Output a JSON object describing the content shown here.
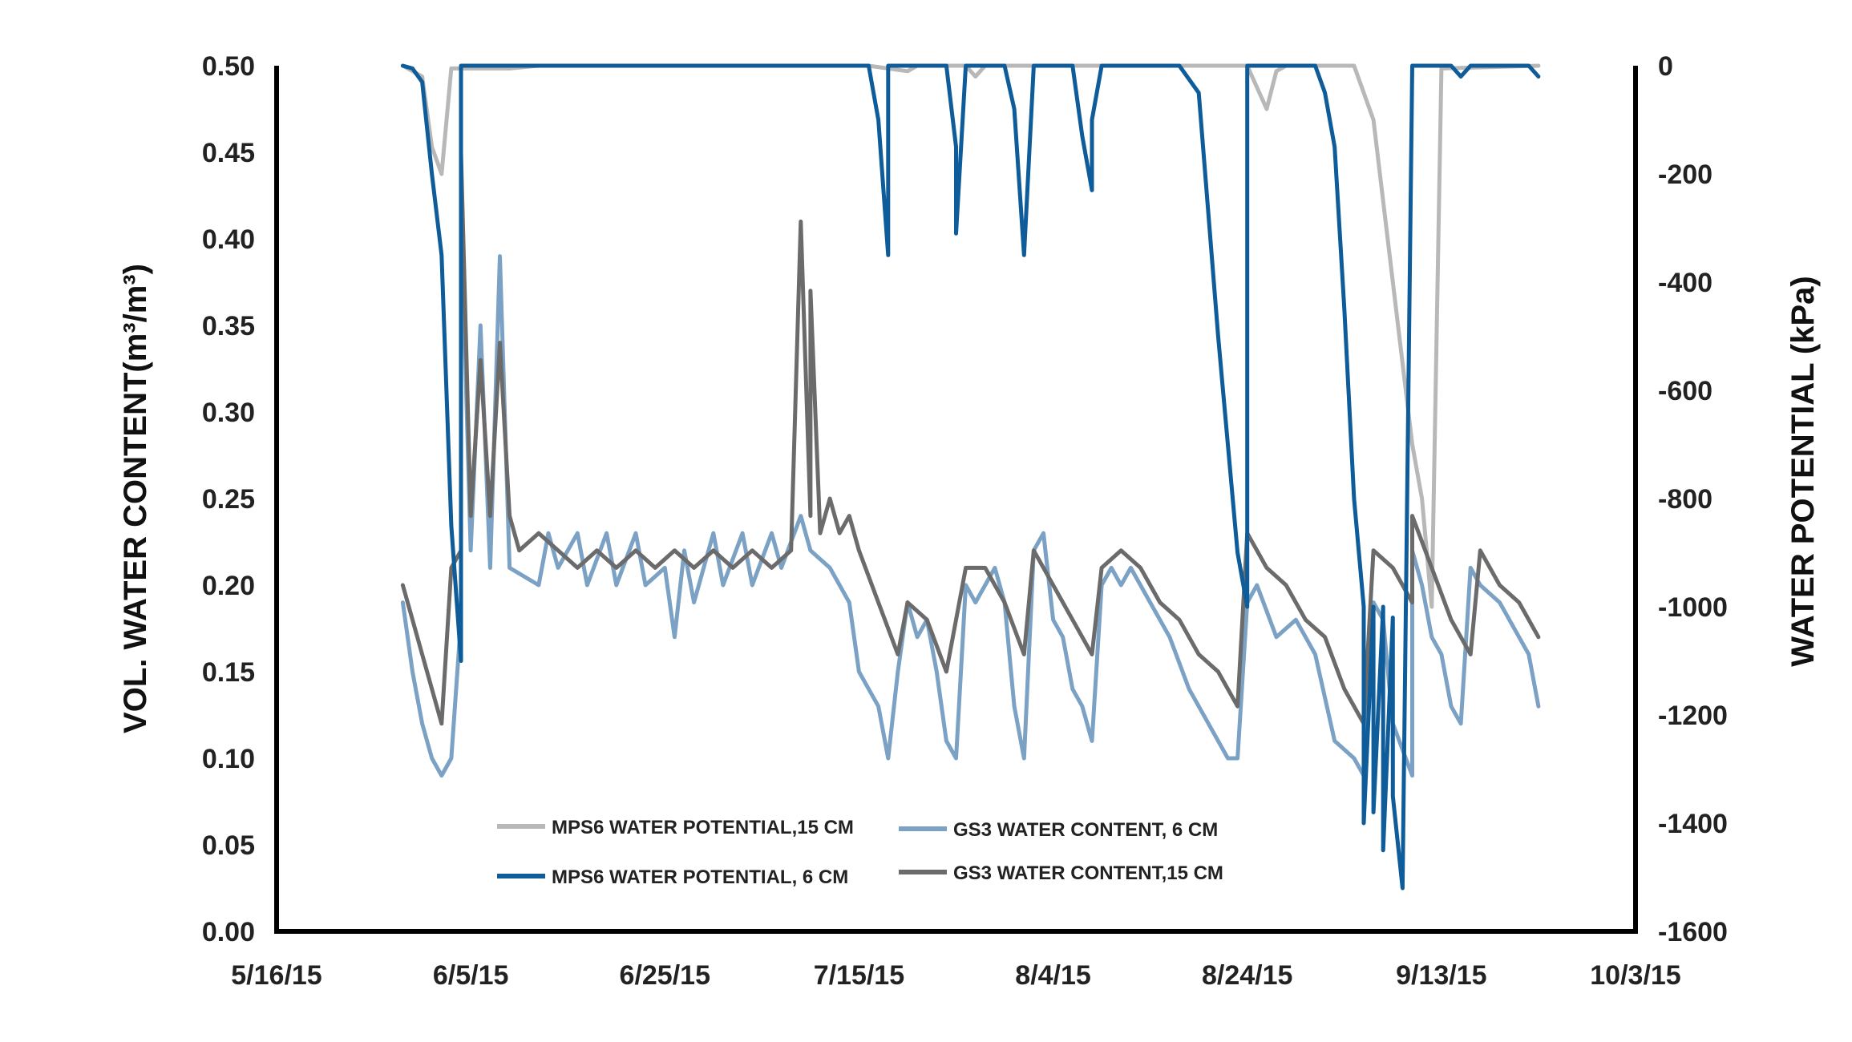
{
  "chart_data": {
    "type": "line",
    "ylabel_left": "VOL. WATER CONTENT(m³/m³)",
    "ylabel_right": "WATER POTENTIAL (kPa)",
    "xlim": [
      "2015-05-16",
      "2015-10-03"
    ],
    "ylim_left": [
      0,
      0.5
    ],
    "ylim_right": [
      -1600,
      0
    ],
    "x_ticks": [
      "5/16/15",
      "6/5/15",
      "6/25/15",
      "7/15/15",
      "8/4/15",
      "8/24/15",
      "9/13/15",
      "10/3/15"
    ],
    "y_ticks_left": [
      "0.00",
      "0.05",
      "0.10",
      "0.15",
      "0.20",
      "0.25",
      "0.30",
      "0.35",
      "0.40",
      "0.45",
      "0.50"
    ],
    "y_ticks_right": [
      "0",
      "-200",
      "-400",
      "-600",
      "-800",
      "-1000",
      "-1200",
      "-1400",
      "-1600"
    ],
    "grid": false,
    "legend_position": "bottom-left",
    "series": [
      {
        "name": "MPS6 WATER POTENTIAL,15 CM",
        "axis": "right",
        "color": "#b8b8b8",
        "points": [
          [
            "2015-05-29",
            0
          ],
          [
            "2015-05-31",
            -20
          ],
          [
            "2015-06-01",
            -150
          ],
          [
            "2015-06-02",
            -200
          ],
          [
            "2015-06-03",
            -5
          ],
          [
            "2015-06-09",
            -5
          ],
          [
            "2015-06-12",
            0
          ],
          [
            "2015-07-16",
            0
          ],
          [
            "2015-07-20",
            -10
          ],
          [
            "2015-07-21",
            0
          ],
          [
            "2015-07-26",
            0
          ],
          [
            "2015-07-27",
            -20
          ],
          [
            "2015-07-28",
            0
          ],
          [
            "2015-08-24",
            0
          ],
          [
            "2015-08-26",
            -80
          ],
          [
            "2015-08-27",
            -10
          ],
          [
            "2015-08-28",
            0
          ],
          [
            "2015-09-04",
            0
          ],
          [
            "2015-09-06",
            -100
          ],
          [
            "2015-09-08",
            -400
          ],
          [
            "2015-09-10",
            -700
          ],
          [
            "2015-09-11",
            -800
          ],
          [
            "2015-09-12",
            -1000
          ],
          [
            "2015-09-13",
            -5
          ],
          [
            "2015-09-23",
            0
          ]
        ]
      },
      {
        "name": "MPS6 WATER POTENTIAL, 6 CM",
        "axis": "right",
        "color": "#0e5c99",
        "points": [
          [
            "2015-05-29",
            0
          ],
          [
            "2015-05-30",
            -5
          ],
          [
            "2015-05-31",
            -30
          ],
          [
            "2015-06-01",
            -200
          ],
          [
            "2015-06-02",
            -350
          ],
          [
            "2015-06-03",
            -850
          ],
          [
            "2015-06-04",
            -1100
          ],
          [
            "2015-06-04",
            0
          ],
          [
            "2015-07-16",
            0
          ],
          [
            "2015-07-17",
            -100
          ],
          [
            "2015-07-18",
            -350
          ],
          [
            "2015-07-18",
            0
          ],
          [
            "2015-07-24",
            0
          ],
          [
            "2015-07-25",
            -150
          ],
          [
            "2015-07-25",
            -310
          ],
          [
            "2015-07-26",
            0
          ],
          [
            "2015-07-30",
            0
          ],
          [
            "2015-07-31",
            -80
          ],
          [
            "2015-08-01",
            -350
          ],
          [
            "2015-08-02",
            0
          ],
          [
            "2015-08-06",
            0
          ],
          [
            "2015-08-07",
            -130
          ],
          [
            "2015-08-08",
            -230
          ],
          [
            "2015-08-08",
            -100
          ],
          [
            "2015-08-09",
            0
          ],
          [
            "2015-08-17",
            0
          ],
          [
            "2015-08-19",
            -50
          ],
          [
            "2015-08-21",
            -500
          ],
          [
            "2015-08-22",
            -700
          ],
          [
            "2015-08-23",
            -900
          ],
          [
            "2015-08-24",
            -1000
          ],
          [
            "2015-08-24",
            0
          ],
          [
            "2015-08-31",
            0
          ],
          [
            "2015-09-01",
            -50
          ],
          [
            "2015-09-02",
            -150
          ],
          [
            "2015-09-03",
            -450
          ],
          [
            "2015-09-04",
            -800
          ],
          [
            "2015-09-05",
            -1000
          ],
          [
            "2015-09-05",
            -1400
          ],
          [
            "2015-09-06",
            -1000
          ],
          [
            "2015-09-06",
            -1380
          ],
          [
            "2015-09-07",
            -1000
          ],
          [
            "2015-09-07",
            -1450
          ],
          [
            "2015-09-08",
            -1020
          ],
          [
            "2015-09-08",
            -1350
          ],
          [
            "2015-09-09",
            -1520
          ],
          [
            "2015-09-10",
            0
          ],
          [
            "2015-09-14",
            0
          ],
          [
            "2015-09-15",
            -20
          ],
          [
            "2015-09-16",
            0
          ],
          [
            "2015-09-22",
            0
          ],
          [
            "2015-09-23",
            -20
          ]
        ]
      },
      {
        "name": "GS3 WATER CONTENT, 6 CM",
        "axis": "left",
        "color": "#7ba1c4",
        "points": [
          [
            "2015-05-29",
            0.19
          ],
          [
            "2015-05-30",
            0.15
          ],
          [
            "2015-05-31",
            0.12
          ],
          [
            "2015-06-01",
            0.1
          ],
          [
            "2015-06-02",
            0.09
          ],
          [
            "2015-06-03",
            0.1
          ],
          [
            "2015-06-04",
            0.18
          ],
          [
            "2015-06-04",
            0.42
          ],
          [
            "2015-06-05",
            0.22
          ],
          [
            "2015-06-06",
            0.35
          ],
          [
            "2015-06-07",
            0.21
          ],
          [
            "2015-06-08",
            0.39
          ],
          [
            "2015-06-09",
            0.21
          ],
          [
            "2015-06-12",
            0.2
          ],
          [
            "2015-06-13",
            0.23
          ],
          [
            "2015-06-14",
            0.21
          ],
          [
            "2015-06-16",
            0.23
          ],
          [
            "2015-06-17",
            0.2
          ],
          [
            "2015-06-19",
            0.23
          ],
          [
            "2015-06-20",
            0.2
          ],
          [
            "2015-06-22",
            0.23
          ],
          [
            "2015-06-23",
            0.2
          ],
          [
            "2015-06-25",
            0.21
          ],
          [
            "2015-06-26",
            0.17
          ],
          [
            "2015-06-27",
            0.22
          ],
          [
            "2015-06-28",
            0.19
          ],
          [
            "2015-06-30",
            0.23
          ],
          [
            "2015-07-01",
            0.2
          ],
          [
            "2015-07-03",
            0.23
          ],
          [
            "2015-07-04",
            0.2
          ],
          [
            "2015-07-06",
            0.23
          ],
          [
            "2015-07-07",
            0.21
          ],
          [
            "2015-07-09",
            0.24
          ],
          [
            "2015-07-10",
            0.22
          ],
          [
            "2015-07-12",
            0.21
          ],
          [
            "2015-07-14",
            0.19
          ],
          [
            "2015-07-15",
            0.15
          ],
          [
            "2015-07-17",
            0.13
          ],
          [
            "2015-07-18",
            0.1
          ],
          [
            "2015-07-19",
            0.15
          ],
          [
            "2015-07-20",
            0.19
          ],
          [
            "2015-07-21",
            0.17
          ],
          [
            "2015-07-22",
            0.18
          ],
          [
            "2015-07-23",
            0.15
          ],
          [
            "2015-07-24",
            0.11
          ],
          [
            "2015-07-25",
            0.1
          ],
          [
            "2015-07-26",
            0.2
          ],
          [
            "2015-07-27",
            0.19
          ],
          [
            "2015-07-29",
            0.21
          ],
          [
            "2015-07-30",
            0.19
          ],
          [
            "2015-07-31",
            0.13
          ],
          [
            "2015-08-01",
            0.1
          ],
          [
            "2015-08-02",
            0.22
          ],
          [
            "2015-08-03",
            0.23
          ],
          [
            "2015-08-04",
            0.18
          ],
          [
            "2015-08-05",
            0.17
          ],
          [
            "2015-08-06",
            0.14
          ],
          [
            "2015-08-07",
            0.13
          ],
          [
            "2015-08-08",
            0.11
          ],
          [
            "2015-08-09",
            0.2
          ],
          [
            "2015-08-10",
            0.21
          ],
          [
            "2015-08-11",
            0.2
          ],
          [
            "2015-08-12",
            0.21
          ],
          [
            "2015-08-14",
            0.19
          ],
          [
            "2015-08-16",
            0.17
          ],
          [
            "2015-08-18",
            0.14
          ],
          [
            "2015-08-20",
            0.12
          ],
          [
            "2015-08-22",
            0.1
          ],
          [
            "2015-08-23",
            0.1
          ],
          [
            "2015-08-24",
            0.19
          ],
          [
            "2015-08-25",
            0.2
          ],
          [
            "2015-08-27",
            0.17
          ],
          [
            "2015-08-29",
            0.18
          ],
          [
            "2015-08-31",
            0.16
          ],
          [
            "2015-09-02",
            0.11
          ],
          [
            "2015-09-04",
            0.1
          ],
          [
            "2015-09-05",
            0.09
          ],
          [
            "2015-09-06",
            0.19
          ],
          [
            "2015-09-07",
            0.18
          ],
          [
            "2015-09-08",
            0.12
          ],
          [
            "2015-09-10",
            0.09
          ],
          [
            "2015-09-10",
            0.22
          ],
          [
            "2015-09-11",
            0.2
          ],
          [
            "2015-09-12",
            0.17
          ],
          [
            "2015-09-13",
            0.16
          ],
          [
            "2015-09-14",
            0.13
          ],
          [
            "2015-09-15",
            0.12
          ],
          [
            "2015-09-16",
            0.21
          ],
          [
            "2015-09-17",
            0.2
          ],
          [
            "2015-09-19",
            0.19
          ],
          [
            "2015-09-21",
            0.17
          ],
          [
            "2015-09-22",
            0.16
          ],
          [
            "2015-09-23",
            0.13
          ]
        ]
      },
      {
        "name": "GS3 WATER CONTENT,15 CM",
        "axis": "left",
        "color": "#6b6b6b",
        "points": [
          [
            "2015-05-29",
            0.2
          ],
          [
            "2015-05-30",
            0.18
          ],
          [
            "2015-05-31",
            0.16
          ],
          [
            "2015-06-01",
            0.14
          ],
          [
            "2015-06-02",
            0.12
          ],
          [
            "2015-06-03",
            0.21
          ],
          [
            "2015-06-04",
            0.22
          ],
          [
            "2015-06-04",
            0.45
          ],
          [
            "2015-06-05",
            0.24
          ],
          [
            "2015-06-06",
            0.33
          ],
          [
            "2015-06-07",
            0.24
          ],
          [
            "2015-06-08",
            0.34
          ],
          [
            "2015-06-09",
            0.24
          ],
          [
            "2015-06-10",
            0.22
          ],
          [
            "2015-06-12",
            0.23
          ],
          [
            "2015-06-14",
            0.22
          ],
          [
            "2015-06-16",
            0.21
          ],
          [
            "2015-06-18",
            0.22
          ],
          [
            "2015-06-20",
            0.21
          ],
          [
            "2015-06-22",
            0.22
          ],
          [
            "2015-06-24",
            0.21
          ],
          [
            "2015-06-26",
            0.22
          ],
          [
            "2015-06-28",
            0.21
          ],
          [
            "2015-06-30",
            0.22
          ],
          [
            "2015-07-02",
            0.21
          ],
          [
            "2015-07-04",
            0.22
          ],
          [
            "2015-07-06",
            0.21
          ],
          [
            "2015-07-08",
            0.22
          ],
          [
            "2015-07-09",
            0.41
          ],
          [
            "2015-07-10",
            0.24
          ],
          [
            "2015-07-10",
            0.37
          ],
          [
            "2015-07-11",
            0.23
          ],
          [
            "2015-07-12",
            0.25
          ],
          [
            "2015-07-13",
            0.23
          ],
          [
            "2015-07-14",
            0.24
          ],
          [
            "2015-07-15",
            0.22
          ],
          [
            "2015-07-17",
            0.19
          ],
          [
            "2015-07-19",
            0.16
          ],
          [
            "2015-07-20",
            0.19
          ],
          [
            "2015-07-22",
            0.18
          ],
          [
            "2015-07-24",
            0.15
          ],
          [
            "2015-07-26",
            0.21
          ],
          [
            "2015-07-28",
            0.21
          ],
          [
            "2015-07-30",
            0.19
          ],
          [
            "2015-08-01",
            0.16
          ],
          [
            "2015-08-02",
            0.22
          ],
          [
            "2015-08-04",
            0.2
          ],
          [
            "2015-08-06",
            0.18
          ],
          [
            "2015-08-08",
            0.16
          ],
          [
            "2015-08-09",
            0.21
          ],
          [
            "2015-08-11",
            0.22
          ],
          [
            "2015-08-13",
            0.21
          ],
          [
            "2015-08-15",
            0.19
          ],
          [
            "2015-08-17",
            0.18
          ],
          [
            "2015-08-19",
            0.16
          ],
          [
            "2015-08-21",
            0.15
          ],
          [
            "2015-08-23",
            0.13
          ],
          [
            "2015-08-24",
            0.23
          ],
          [
            "2015-08-26",
            0.21
          ],
          [
            "2015-08-28",
            0.2
          ],
          [
            "2015-08-30",
            0.18
          ],
          [
            "2015-09-01",
            0.17
          ],
          [
            "2015-09-03",
            0.14
          ],
          [
            "2015-09-05",
            0.12
          ],
          [
            "2015-09-06",
            0.22
          ],
          [
            "2015-09-08",
            0.21
          ],
          [
            "2015-09-10",
            0.19
          ],
          [
            "2015-09-10",
            0.24
          ],
          [
            "2015-09-12",
            0.21
          ],
          [
            "2015-09-14",
            0.18
          ],
          [
            "2015-09-16",
            0.16
          ],
          [
            "2015-09-17",
            0.22
          ],
          [
            "2015-09-19",
            0.2
          ],
          [
            "2015-09-21",
            0.19
          ],
          [
            "2015-09-22",
            0.18
          ],
          [
            "2015-09-23",
            0.17
          ]
        ]
      }
    ]
  }
}
